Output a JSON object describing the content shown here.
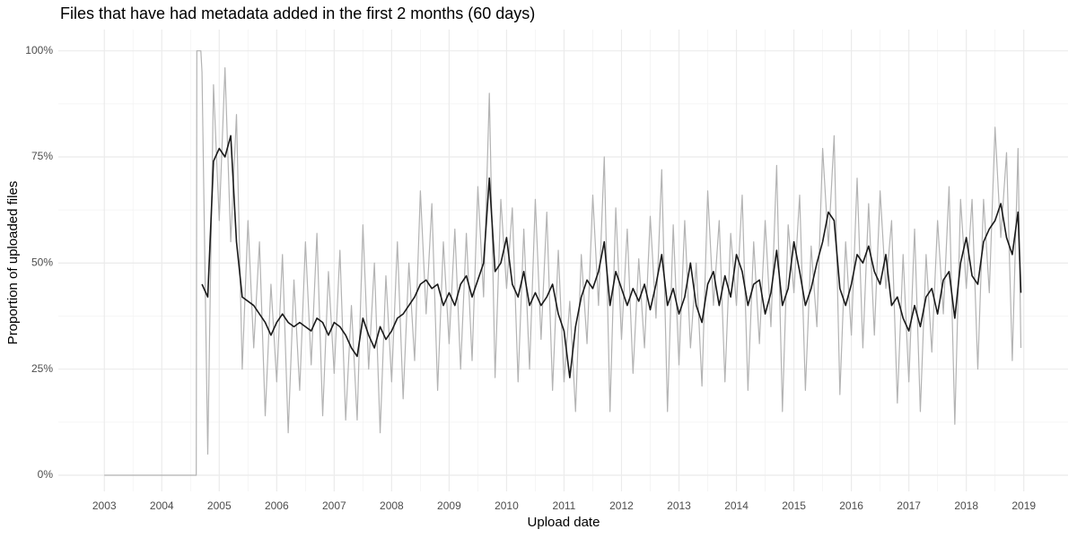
{
  "chart_data": {
    "type": "line",
    "title": "Files that have had metadata added in the first 2 months (60 days)",
    "x_label": "Upload date",
    "y_label": "Proportion of uploaded files",
    "x": [
      2003.0,
      2004.6,
      2004.61,
      2004.68,
      2004.7,
      2004.8,
      2004.9,
      2005.0,
      2005.1,
      2005.2,
      2005.3,
      2005.4,
      2005.5,
      2005.6,
      2005.7,
      2005.8,
      2005.9,
      2006.0,
      2006.1,
      2006.2,
      2006.3,
      2006.4,
      2006.5,
      2006.6,
      2006.7,
      2006.8,
      2006.9,
      2007.0,
      2007.1,
      2007.2,
      2007.3,
      2007.4,
      2007.5,
      2007.6,
      2007.7,
      2007.8,
      2007.9,
      2008.0,
      2008.1,
      2008.2,
      2008.3,
      2008.4,
      2008.5,
      2008.6,
      2008.7,
      2008.8,
      2008.9,
      2009.0,
      2009.1,
      2009.2,
      2009.3,
      2009.4,
      2009.5,
      2009.6,
      2009.7,
      2009.8,
      2009.9,
      2010.0,
      2010.1,
      2010.2,
      2010.3,
      2010.4,
      2010.5,
      2010.6,
      2010.7,
      2010.8,
      2010.9,
      2011.0,
      2011.1,
      2011.2,
      2011.3,
      2011.4,
      2011.5,
      2011.6,
      2011.7,
      2011.8,
      2011.9,
      2012.0,
      2012.1,
      2012.2,
      2012.3,
      2012.4,
      2012.5,
      2012.6,
      2012.7,
      2012.8,
      2012.9,
      2013.0,
      2013.1,
      2013.2,
      2013.3,
      2013.4,
      2013.5,
      2013.6,
      2013.7,
      2013.8,
      2013.9,
      2014.0,
      2014.1,
      2014.2,
      2014.3,
      2014.4,
      2014.5,
      2014.6,
      2014.7,
      2014.8,
      2014.9,
      2015.0,
      2015.1,
      2015.2,
      2015.3,
      2015.4,
      2015.5,
      2015.6,
      2015.7,
      2015.8,
      2015.9,
      2016.0,
      2016.1,
      2016.2,
      2016.3,
      2016.4,
      2016.5,
      2016.6,
      2016.7,
      2016.8,
      2016.9,
      2017.0,
      2017.1,
      2017.2,
      2017.3,
      2017.4,
      2017.5,
      2017.6,
      2017.7,
      2017.8,
      2017.9,
      2018.0,
      2018.1,
      2018.2,
      2018.3,
      2018.4,
      2018.5,
      2018.6,
      2018.7,
      2018.8,
      2018.9,
      2018.95
    ],
    "series": [
      {
        "color": "#b3b3b3",
        "values": [
          0,
          0,
          100,
          100,
          95,
          5,
          92,
          60,
          96,
          55,
          85,
          25,
          60,
          30,
          55,
          14,
          45,
          22,
          52,
          10,
          46,
          20,
          55,
          26,
          57,
          14,
          48,
          24,
          53,
          13,
          40,
          13,
          59,
          25,
          50,
          10,
          47,
          22,
          55,
          18,
          50,
          27,
          67,
          38,
          64,
          20,
          55,
          31,
          58,
          25,
          57,
          27,
          68,
          42,
          90,
          23,
          65,
          44,
          63,
          22,
          58,
          25,
          65,
          32,
          62,
          20,
          53,
          22,
          41,
          15,
          52,
          31,
          66,
          40,
          75,
          15,
          63,
          32,
          58,
          24,
          51,
          30,
          61,
          37,
          72,
          15,
          59,
          26,
          60,
          30,
          50,
          21,
          67,
          40,
          60,
          22,
          57,
          40,
          66,
          20,
          55,
          31,
          60,
          35,
          73,
          15,
          59,
          43,
          66,
          20,
          54,
          35,
          77,
          54,
          80,
          19,
          55,
          33,
          70,
          30,
          64,
          33,
          67,
          44,
          60,
          17,
          52,
          22,
          58,
          15,
          52,
          29,
          60,
          38,
          68,
          12,
          65,
          44,
          65,
          25,
          65,
          43,
          82,
          56,
          76,
          27,
          77,
          30
        ]
      },
      {
        "color": "#1a1a1a",
        "values": [
          null,
          null,
          null,
          null,
          45,
          42,
          74,
          77,
          75,
          80,
          55,
          42,
          41,
          40,
          38,
          36,
          33,
          36,
          38,
          36,
          35,
          36,
          35,
          34,
          37,
          36,
          33,
          36,
          35,
          33,
          30,
          28,
          37,
          33,
          30,
          35,
          32,
          34,
          37,
          38,
          40,
          42,
          45,
          46,
          44,
          45,
          40,
          43,
          40,
          45,
          47,
          42,
          46,
          50,
          70,
          48,
          50,
          56,
          45,
          42,
          48,
          40,
          43,
          40,
          42,
          45,
          38,
          34,
          23,
          35,
          42,
          46,
          44,
          48,
          55,
          40,
          48,
          44,
          40,
          44,
          41,
          45,
          39,
          45,
          52,
          40,
          44,
          38,
          42,
          50,
          40,
          36,
          45,
          48,
          40,
          47,
          42,
          52,
          48,
          40,
          45,
          46,
          38,
          43,
          53,
          40,
          44,
          55,
          48,
          40,
          44,
          50,
          55,
          62,
          60,
          44,
          40,
          45,
          52,
          50,
          54,
          48,
          45,
          52,
          40,
          42,
          37,
          34,
          40,
          35,
          42,
          44,
          38,
          46,
          48,
          37,
          50,
          56,
          47,
          45,
          55,
          58,
          60,
          64,
          56,
          52,
          62,
          43
        ]
      }
    ],
    "xlim": [
      2002.2,
      2019.77
    ],
    "xticks": [
      2003,
      2004,
      2005,
      2006,
      2007,
      2008,
      2009,
      2010,
      2011,
      2012,
      2013,
      2014,
      2015,
      2016,
      2017,
      2018,
      2019
    ],
    "xminor_ticks": [
      2003.5,
      2004.5,
      2005.5,
      2006.5,
      2007.5,
      2008.5,
      2009.5,
      2010.5,
      2011.5,
      2012.5,
      2013.5,
      2014.5,
      2015.5,
      2016.5,
      2017.5,
      2018.5
    ],
    "ylim": [
      -3.8,
      105
    ],
    "yticks": [
      {
        "value": 0,
        "label": "0%"
      },
      {
        "value": 25,
        "label": "25%"
      },
      {
        "value": 50,
        "label": "50%"
      },
      {
        "value": 75,
        "label": "75%"
      },
      {
        "value": 100,
        "label": "100%"
      }
    ],
    "yminor_ticks": [
      12.5,
      37.5,
      62.5,
      87.5
    ],
    "grid": true
  }
}
